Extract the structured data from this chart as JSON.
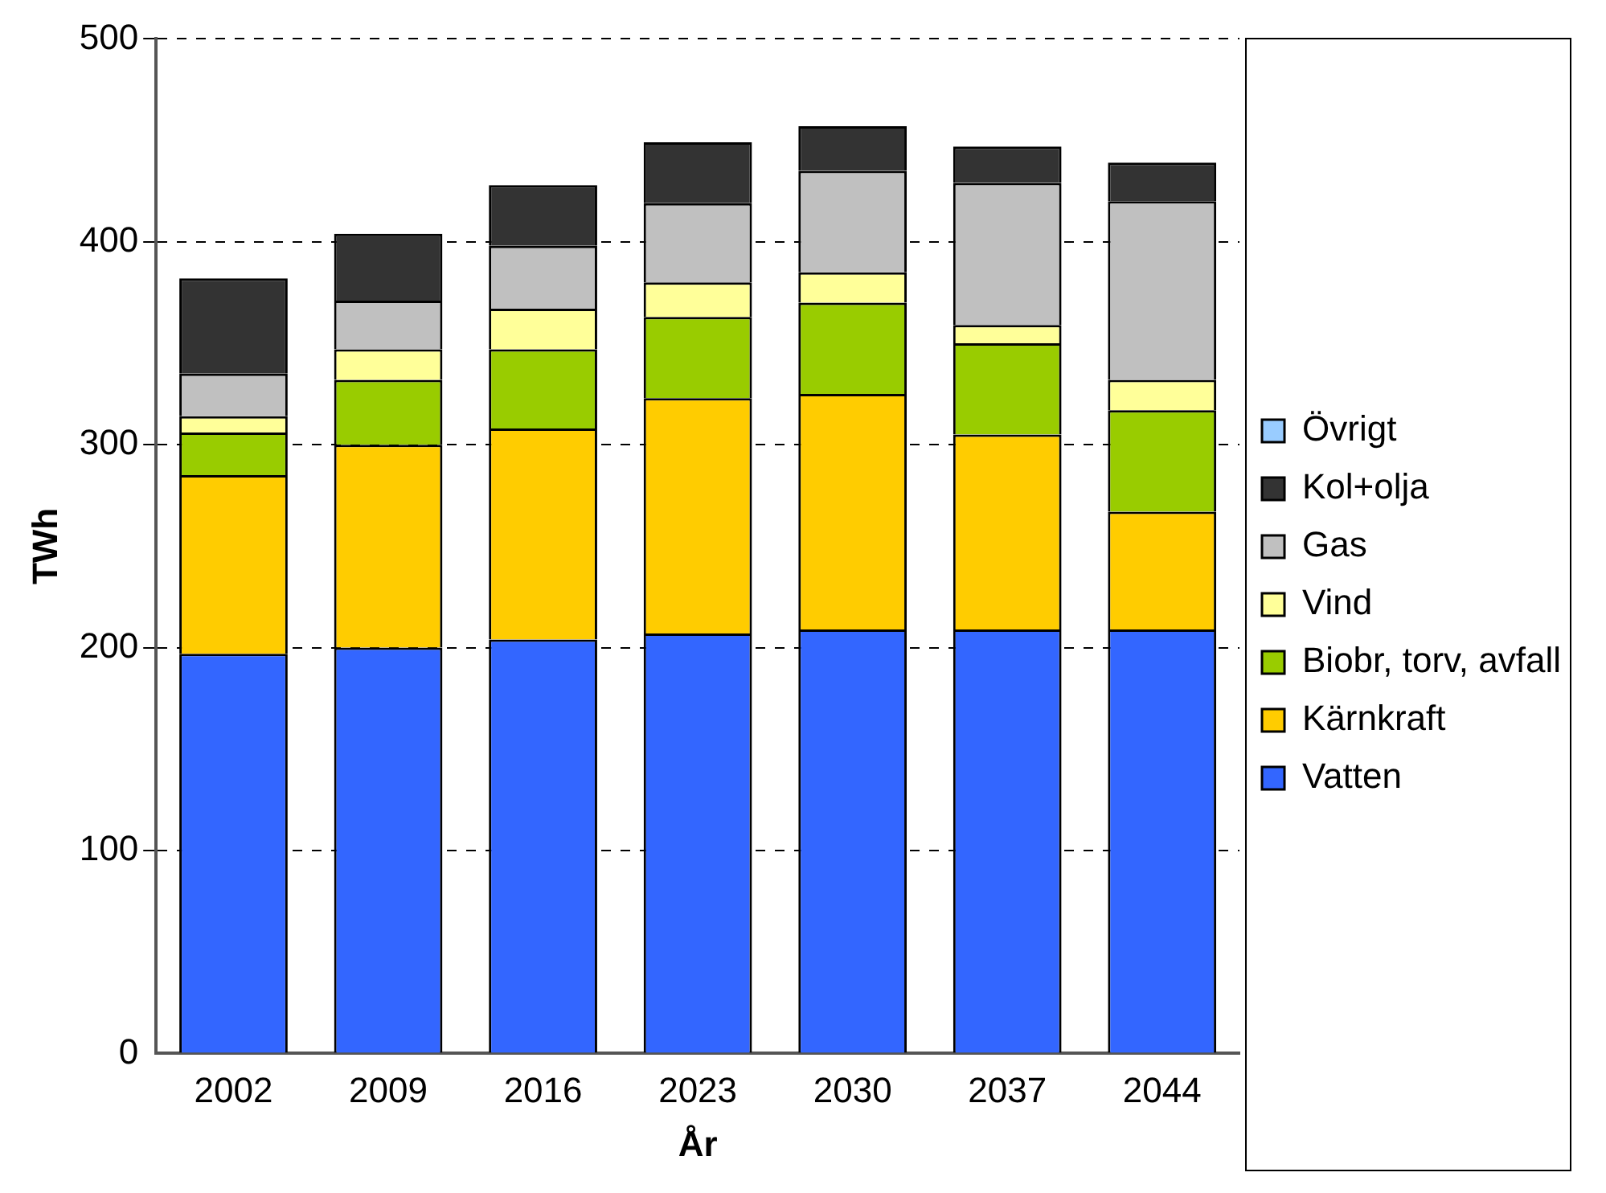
{
  "chart_data": {
    "type": "bar",
    "stacked": true,
    "xlabel": "År",
    "ylabel": "TWh",
    "categories": [
      "2002",
      "2009",
      "2016",
      "2023",
      "2030",
      "2037",
      "2044"
    ],
    "ylim": [
      0,
      500
    ],
    "yticks": [
      0,
      100,
      200,
      300,
      400,
      500
    ],
    "grid": "y",
    "legend": "right",
    "series": [
      {
        "name": "Vatten",
        "color": "#3366ff",
        "values": [
          197,
          200,
          204,
          207,
          209,
          209,
          209
        ]
      },
      {
        "name": "Kärnkraft",
        "color": "#ffcc00",
        "values": [
          88,
          100,
          104,
          116,
          116,
          96,
          58
        ]
      },
      {
        "name": "Biobr, torv, avfall",
        "color": "#99cc00",
        "values": [
          21,
          32,
          39,
          40,
          45,
          45,
          50
        ]
      },
      {
        "name": "Vind",
        "color": "#ffff99",
        "values": [
          8,
          15,
          20,
          17,
          15,
          9,
          15
        ]
      },
      {
        "name": "Gas",
        "color": "#c0c0c0",
        "values": [
          21,
          24,
          31,
          39,
          50,
          70,
          88
        ]
      },
      {
        "name": "Kol+olja",
        "color": "#333333",
        "values": [
          47,
          33,
          30,
          30,
          22,
          18,
          19
        ]
      },
      {
        "name": "Övrigt",
        "color": "#99ccff",
        "values": [
          0,
          0,
          0,
          0,
          0,
          0,
          0
        ]
      }
    ]
  }
}
